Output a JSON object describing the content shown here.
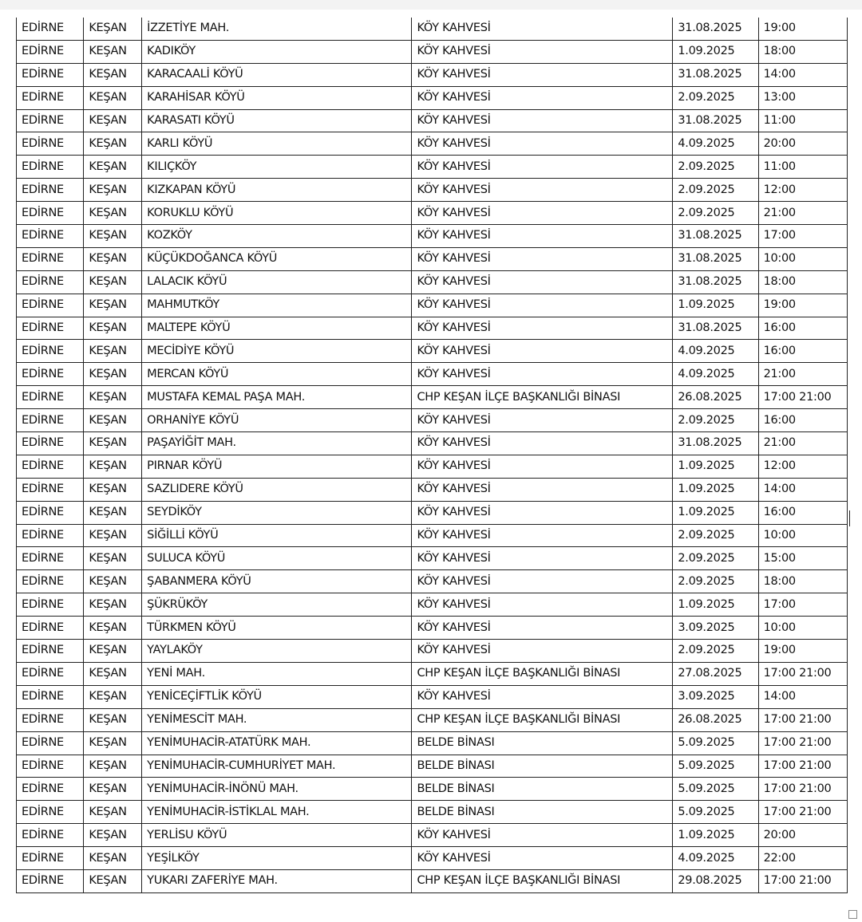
{
  "rows": [
    [
      "EDİRNE",
      "KEŞAN",
      "İZZETİYE MAH.",
      "KÖY KAHVESİ",
      "31.08.2025",
      "19:00"
    ],
    [
      "EDİRNE",
      "KEŞAN",
      "KADIKÖY",
      "KÖY KAHVESİ",
      "1.09.2025",
      "18:00"
    ],
    [
      "EDİRNE",
      "KEŞAN",
      "KARACAALİ KÖYÜ",
      "KÖY KAHVESİ",
      "31.08.2025",
      "14:00"
    ],
    [
      "EDİRNE",
      "KEŞAN",
      "KARAHİSAR KÖYÜ",
      "KÖY KAHVESİ",
      "2.09.2025",
      "13:00"
    ],
    [
      "EDİRNE",
      "KEŞAN",
      "KARASATI KÖYÜ",
      "KÖY KAHVESİ",
      "31.08.2025",
      "11:00"
    ],
    [
      "EDİRNE",
      "KEŞAN",
      "KARLI KÖYÜ",
      "KÖY KAHVESİ",
      "4.09.2025",
      "20:00"
    ],
    [
      "EDİRNE",
      "KEŞAN",
      "KILIÇKÖY",
      "KÖY KAHVESİ",
      "2.09.2025",
      "11:00"
    ],
    [
      "EDİRNE",
      "KEŞAN",
      "KIZKAPAN KÖYÜ",
      "KÖY KAHVESİ",
      "2.09.2025",
      "12:00"
    ],
    [
      "EDİRNE",
      "KEŞAN",
      "KORUKLU KÖYÜ",
      "KÖY KAHVESİ",
      "2.09.2025",
      "21:00"
    ],
    [
      "EDİRNE",
      "KEŞAN",
      "KOZKÖY",
      "KÖY KAHVESİ",
      "31.08.2025",
      "17:00"
    ],
    [
      "EDİRNE",
      "KEŞAN",
      "KÜÇÜKDOĞANCA KÖYÜ",
      "KÖY KAHVESİ",
      "31.08.2025",
      "10:00"
    ],
    [
      "EDİRNE",
      "KEŞAN",
      "LALACIK KÖYÜ",
      "KÖY KAHVESİ",
      "31.08.2025",
      "18:00"
    ],
    [
      "EDİRNE",
      "KEŞAN",
      "MAHMUTKÖY",
      "KÖY KAHVESİ",
      "1.09.2025",
      "19:00"
    ],
    [
      "EDİRNE",
      "KEŞAN",
      "MALTEPE KÖYÜ",
      "KÖY KAHVESİ",
      "31.08.2025",
      "16:00"
    ],
    [
      "EDİRNE",
      "KEŞAN",
      "MECİDİYE KÖYÜ",
      "KÖY KAHVESİ",
      "4.09.2025",
      "16:00"
    ],
    [
      "EDİRNE",
      "KEŞAN",
      "MERCAN KÖYÜ",
      "KÖY KAHVESİ",
      "4.09.2025",
      "21:00"
    ],
    [
      "EDİRNE",
      "KEŞAN",
      "MUSTAFA KEMAL PAŞA MAH.",
      "CHP KEŞAN İLÇE BAŞKANLIĞI BİNASI",
      "26.08.2025",
      "17:00 21:00"
    ],
    [
      "EDİRNE",
      "KEŞAN",
      "ORHANİYE KÖYÜ",
      "KÖY KAHVESİ",
      "2.09.2025",
      "16:00"
    ],
    [
      "EDİRNE",
      "KEŞAN",
      "PAŞAYİĞİT MAH.",
      "KÖY KAHVESİ",
      "31.08.2025",
      "21:00"
    ],
    [
      "EDİRNE",
      "KEŞAN",
      "PIRNAR KÖYÜ",
      "KÖY KAHVESİ",
      "1.09.2025",
      "12:00"
    ],
    [
      "EDİRNE",
      "KEŞAN",
      "SAZLIDERE KÖYÜ",
      "KÖY KAHVESİ",
      "1.09.2025",
      "14:00"
    ],
    [
      "EDİRNE",
      "KEŞAN",
      "SEYDİKÖY",
      "KÖY KAHVESİ",
      "1.09.2025",
      "16:00"
    ],
    [
      "EDİRNE",
      "KEŞAN",
      "SİĞİLLİ KÖYÜ",
      "KÖY KAHVESİ",
      "2.09.2025",
      "10:00"
    ],
    [
      "EDİRNE",
      "KEŞAN",
      "SULUCA KÖYÜ",
      "KÖY KAHVESİ",
      "2.09.2025",
      "15:00"
    ],
    [
      "EDİRNE",
      "KEŞAN",
      "ŞABANMERA KÖYÜ",
      "KÖY KAHVESİ",
      "2.09.2025",
      "18:00"
    ],
    [
      "EDİRNE",
      "KEŞAN",
      "ŞÜKRÜKÖY",
      "KÖY KAHVESİ",
      "1.09.2025",
      "17:00"
    ],
    [
      "EDİRNE",
      "KEŞAN",
      "TÜRKMEN KÖYÜ",
      "KÖY KAHVESİ",
      "3.09.2025",
      "10:00"
    ],
    [
      "EDİRNE",
      "KEŞAN",
      "YAYLAKÖY",
      "KÖY KAHVESİ",
      "2.09.2025",
      "19:00"
    ],
    [
      "EDİRNE",
      "KEŞAN",
      "YENİ MAH.",
      "CHP KEŞAN İLÇE BAŞKANLIĞI BİNASI",
      "27.08.2025",
      "17:00 21:00"
    ],
    [
      "EDİRNE",
      "KEŞAN",
      "YENİCEÇİFTLİK KÖYÜ",
      "KÖY KAHVESİ",
      "3.09.2025",
      "14:00"
    ],
    [
      "EDİRNE",
      "KEŞAN",
      "YENİMESCİT MAH.",
      "CHP KEŞAN İLÇE BAŞKANLIĞI BİNASI",
      "26.08.2025",
      "17:00 21:00"
    ],
    [
      "EDİRNE",
      "KEŞAN",
      "YENİMUHACİR-ATATÜRK MAH.",
      "BELDE BİNASI",
      "5.09.2025",
      "17:00 21:00"
    ],
    [
      "EDİRNE",
      "KEŞAN",
      "YENİMUHACİR-CUMHURİYET MAH.",
      "BELDE BİNASI",
      "5.09.2025",
      "17:00 21:00"
    ],
    [
      "EDİRNE",
      "KEŞAN",
      "YENİMUHACİR-İNÖNÜ MAH.",
      "BELDE BİNASI",
      "5.09.2025",
      "17:00 21:00"
    ],
    [
      "EDİRNE",
      "KEŞAN",
      "YENİMUHACİR-İSTİKLAL MAH.",
      "BELDE BİNASI",
      "5.09.2025",
      "17:00 21:00"
    ],
    [
      "EDİRNE",
      "KEŞAN",
      "YERLİSU KÖYÜ",
      "KÖY KAHVESİ",
      "1.09.2025",
      "20:00"
    ],
    [
      "EDİRNE",
      "KEŞAN",
      "YEŞİLKÖY",
      "KÖY KAHVESİ",
      "4.09.2025",
      "22:00"
    ],
    [
      "EDİRNE",
      "KEŞAN",
      "YUKARI ZAFERİYE MAH.",
      "CHP KEŞAN İLÇE BAŞKANLIĞI BİNASI",
      "29.08.2025",
      "17:00 21:00"
    ]
  ]
}
